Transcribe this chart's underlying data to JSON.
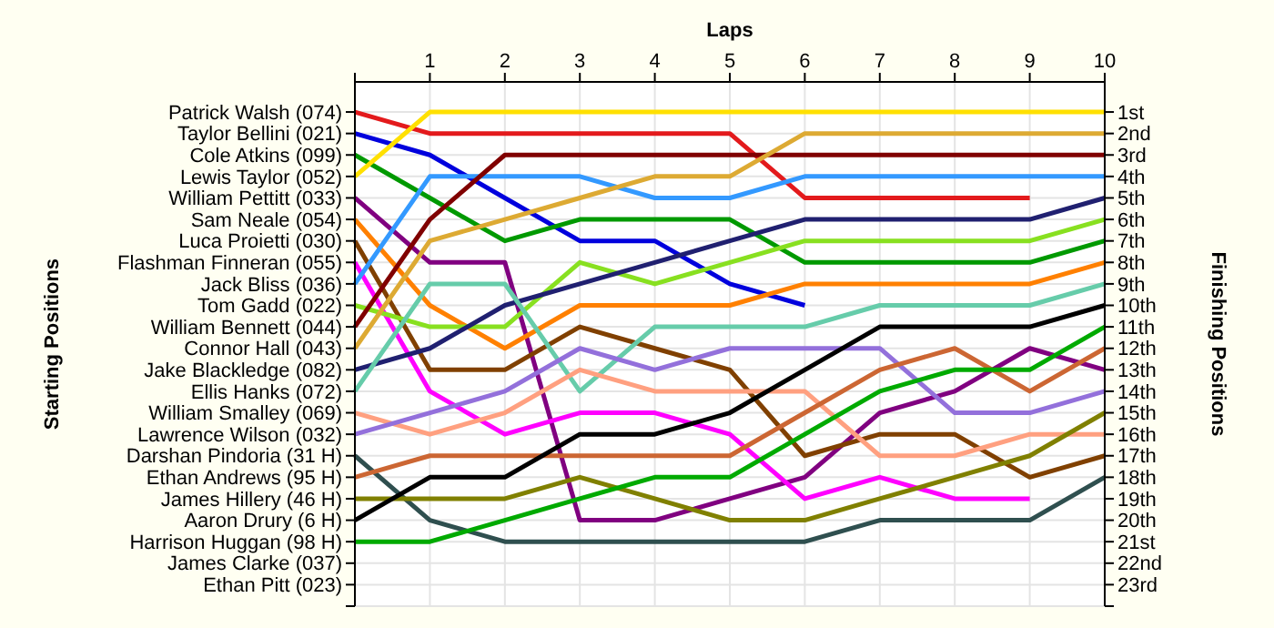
{
  "chart_data": {
    "type": "line",
    "xlabel": "Laps",
    "annotations": [
      "Starting Positions"
    ],
    "y2label": "Finishing Positions",
    "x": [
      0,
      1,
      2,
      3,
      4,
      5,
      6,
      7,
      8,
      9,
      10
    ],
    "xlim": [
      0,
      10
    ],
    "xticks": [
      {
        "value": 0,
        "label": null
      },
      1,
      2,
      3,
      4,
      5,
      6,
      7,
      8,
      9,
      10
    ],
    "y2lim": [
      24,
      -0.4
    ],
    "y_categories": [
      "Patrick Walsh (074)",
      "Taylor Bellini (021)",
      "Cole Atkins (099)",
      "Lewis Taylor (052)",
      "William Pettitt (033)",
      "Sam Neale (054)",
      "Luca Proietti (030)",
      "Flashman Finneran (055)",
      "Jack Bliss (036)",
      "Tom Gadd (022)",
      "William Bennett (044)",
      "Connor Hall (043)",
      "Jake Blackledge (082)",
      "Ellis Hanks (072)",
      "William Smalley (069)",
      "Lawrence Wilson (032)",
      "Darshan Pindoria (31 H)",
      "Ethan Andrews (95 H)",
      "James Hillery (46 H)",
      "Aaron Drury (6 H)",
      "Harrison Huggan (98 H)",
      "James Clarke (037)",
      "Ethan Pitt (023)"
    ],
    "y2ticks": [
      {
        "value": 1,
        "label": "1st"
      },
      {
        "value": 2,
        "label": "2nd"
      },
      {
        "value": 3,
        "label": "3rd"
      },
      {
        "value": 4,
        "label": "4th"
      },
      {
        "value": 5,
        "label": "5th"
      },
      {
        "value": 6,
        "label": "6th"
      },
      {
        "value": 7,
        "label": "7th"
      },
      {
        "value": 8,
        "label": "8th"
      },
      {
        "value": 9,
        "label": "9th"
      },
      {
        "value": 10,
        "label": "10th"
      },
      {
        "value": 11,
        "label": "11th"
      },
      {
        "value": 12,
        "label": "12th"
      },
      {
        "value": 13,
        "label": "13th"
      },
      {
        "value": 14,
        "label": "14th"
      },
      {
        "value": 15,
        "label": "15th"
      },
      {
        "value": 16,
        "label": "16th"
      },
      {
        "value": 17,
        "label": "17th"
      },
      {
        "value": 18,
        "label": "18th"
      },
      {
        "value": 19,
        "label": "19th"
      },
      {
        "value": 20,
        "label": "20th"
      },
      {
        "value": 21,
        "label": "21st"
      },
      {
        "value": 22,
        "label": "22nd"
      },
      {
        "value": 23,
        "label": "23rd"
      },
      {
        "value": 24,
        "label": null
      }
    ],
    "grid": true,
    "marker": "none",
    "line_style": "solid",
    "series": [
      {
        "axis": "y2",
        "color": "#e31a1c",
        "values": [
          1,
          2,
          2,
          2,
          2,
          2,
          5,
          5,
          5,
          5,
          null
        ]
      },
      {
        "axis": "y2",
        "color": "#0000dd",
        "values": [
          2,
          3,
          5,
          7,
          7,
          9,
          10,
          null,
          null,
          null,
          null
        ]
      },
      {
        "axis": "y2",
        "color": "#009900",
        "values": [
          3,
          5,
          7,
          6,
          6,
          6,
          8,
          8,
          8,
          8,
          7
        ]
      },
      {
        "axis": "y2",
        "color": "#ffe000",
        "values": [
          4,
          1,
          1,
          1,
          1,
          1,
          1,
          1,
          1,
          1,
          1
        ]
      },
      {
        "axis": "y2",
        "color": "#800080",
        "values": [
          5,
          8,
          8,
          20,
          20,
          19,
          18,
          15,
          14,
          12,
          13
        ]
      },
      {
        "axis": "y2",
        "color": "#ff8000",
        "values": [
          6,
          10,
          12,
          10,
          10,
          10,
          9,
          9,
          9,
          9,
          8
        ]
      },
      {
        "axis": "y2",
        "color": "#804000",
        "values": [
          7,
          13,
          13,
          11,
          12,
          13,
          17,
          16,
          16,
          18,
          17
        ]
      },
      {
        "axis": "y2",
        "color": "#ff00ff",
        "values": [
          8,
          14,
          16,
          15,
          15,
          16,
          19,
          18,
          19,
          19,
          null
        ]
      },
      {
        "axis": "y2",
        "color": "#3399ff",
        "values": [
          9,
          4,
          4,
          4,
          5,
          5,
          4,
          4,
          4,
          4,
          4
        ]
      },
      {
        "axis": "y2",
        "color": "#88e020",
        "values": [
          10,
          11,
          11,
          8,
          9,
          8,
          7,
          7,
          7,
          7,
          6
        ]
      },
      {
        "axis": "y2",
        "color": "#800000",
        "values": [
          11,
          6,
          3,
          3,
          3,
          3,
          3,
          3,
          3,
          3,
          3
        ]
      },
      {
        "axis": "y2",
        "color": "#ddaa33",
        "values": [
          12,
          7,
          6,
          5,
          4,
          4,
          2,
          2,
          2,
          2,
          2
        ]
      },
      {
        "axis": "y2",
        "color": "#202070",
        "values": [
          13,
          12,
          10,
          9,
          8,
          7,
          6,
          6,
          6,
          6,
          5
        ]
      },
      {
        "axis": "y2",
        "color": "#66ccaa",
        "values": [
          14,
          9,
          9,
          14,
          11,
          11,
          11,
          10,
          10,
          10,
          9
        ]
      },
      {
        "axis": "y2",
        "color": "#ffa080",
        "values": [
          15,
          16,
          15,
          13,
          14,
          14,
          14,
          17,
          17,
          16,
          16
        ]
      },
      {
        "axis": "y2",
        "color": "#9370db",
        "values": [
          16,
          15,
          14,
          12,
          13,
          12,
          12,
          12,
          15,
          15,
          14
        ]
      },
      {
        "axis": "y2",
        "color": "#2f4f4f",
        "values": [
          17,
          20,
          21,
          21,
          21,
          21,
          21,
          20,
          20,
          20,
          18
        ]
      },
      {
        "axis": "y2",
        "color": "#cc6633",
        "values": [
          18,
          17,
          17,
          17,
          17,
          17,
          15,
          13,
          12,
          14,
          12
        ]
      },
      {
        "axis": "y2",
        "color": "#808000",
        "values": [
          19,
          19,
          19,
          18,
          19,
          20,
          20,
          19,
          18,
          17,
          15
        ]
      },
      {
        "axis": "y2",
        "color": "#000000",
        "values": [
          20,
          18,
          18,
          16,
          16,
          15,
          13,
          11,
          11,
          11,
          10
        ]
      },
      {
        "axis": "y2",
        "color": "#00aa00",
        "values": [
          21,
          21,
          20,
          19,
          18,
          18,
          16,
          14,
          13,
          13,
          11
        ]
      }
    ]
  }
}
